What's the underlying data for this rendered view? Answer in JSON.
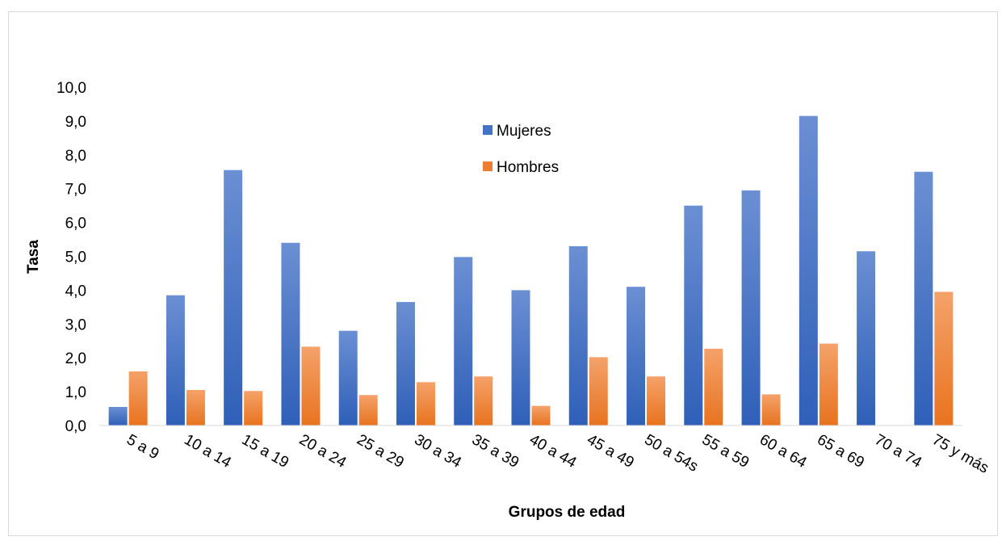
{
  "chart_data": {
    "type": "bar",
    "title": "",
    "xlabel": "Grupos de edad",
    "ylabel": "Tasa",
    "ylim": [
      0,
      10
    ],
    "ytick_step": 1,
    "ytick_format": "comma-1",
    "grid": false,
    "legend": "inside-top-center",
    "categories": [
      "5 a 9",
      "10 a 14",
      "15 a 19",
      "20 a 24",
      "25 a 29",
      "30 a 34",
      "35 a 39",
      "40 a 44",
      "45 a 49",
      "50 a 54s",
      "55 a 59",
      "60 a 64",
      "65 a 69",
      "70 a 74",
      "75 y más"
    ],
    "series": [
      {
        "name": "Mujeres",
        "color": "#4472c4",
        "values": [
          0.55,
          3.85,
          7.55,
          5.4,
          2.8,
          3.65,
          4.98,
          4.0,
          5.3,
          4.1,
          6.5,
          6.95,
          9.15,
          5.15,
          7.5
        ]
      },
      {
        "name": "Hombres",
        "color": "#ed7d31",
        "values": [
          1.6,
          1.05,
          1.02,
          2.33,
          0.9,
          1.28,
          1.45,
          0.58,
          2.02,
          1.45,
          2.27,
          0.92,
          2.42,
          0,
          3.95
        ]
      }
    ]
  }
}
